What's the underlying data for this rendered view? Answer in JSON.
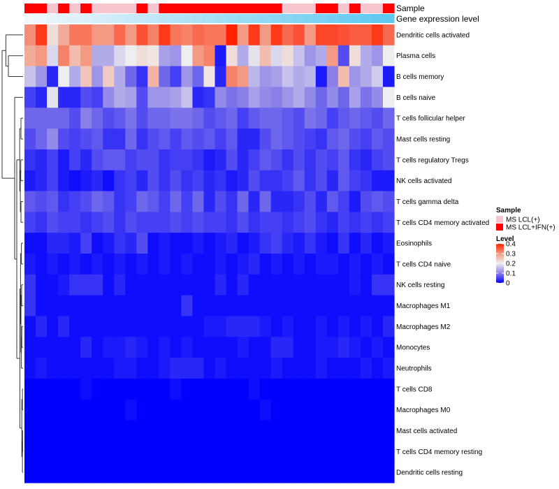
{
  "chart_data": {
    "type": "heatmap",
    "title": "",
    "annotation_labels": [
      "Sample",
      "Gene expression level"
    ],
    "rows": [
      "Dendritic cells activated",
      "Plasma cells",
      "B cells memory",
      "B cells naive",
      "T cells follicular helper",
      "Mast cells resting",
      "T cells regulatory  Tregs",
      "NK cells activated",
      "T cells gamma delta",
      "T cells CD4 memory activated",
      "Eosinophils",
      "T cells CD4 naive",
      "NK cells resting",
      "Macrophages M1",
      "Macrophages M2",
      "Monocytes",
      "Neutrophils",
      "T cells CD8",
      "Macrophages M0",
      "Mast cells activated",
      "T cells CD4 memory resting",
      "Dendritic cells resting"
    ],
    "sample_groups": [
      "IFN",
      "IFN",
      "LCL",
      "IFN",
      "LCL",
      "IFN",
      "LCL",
      "LCL",
      "LCL",
      "LCL",
      "IFN",
      "LCL",
      "IFN",
      "IFN",
      "IFN",
      "IFN",
      "IFN",
      "IFN",
      "IFN",
      "IFN",
      "IFN",
      "IFN",
      "IFN",
      "LCL",
      "LCL",
      "LCL",
      "IFN",
      "IFN",
      "LCL",
      "IFN",
      "LCL",
      "LCL",
      "IFN"
    ],
    "values": [
      [
        0.31,
        0.38,
        0.22,
        0.28,
        0.33,
        0.33,
        0.3,
        0.3,
        0.34,
        0.3,
        0.36,
        0.32,
        0.38,
        0.33,
        0.32,
        0.34,
        0.33,
        0.33,
        0.4,
        0.3,
        0.38,
        0.3,
        0.38,
        0.34,
        0.36,
        0.3,
        0.37,
        0.37,
        0.36,
        0.35,
        0.35,
        0.38,
        0.34
      ],
      [
        0.28,
        0.3,
        0.18,
        0.32,
        0.26,
        0.3,
        0.14,
        0.14,
        0.18,
        0.2,
        0.22,
        0.21,
        0.13,
        0.12,
        0.2,
        0.3,
        0.32,
        0.02,
        0.22,
        0.14,
        0.19,
        0.26,
        0.18,
        0.22,
        0.16,
        0.12,
        0.14,
        0.3,
        0.06,
        0.22,
        0.14,
        0.12,
        0.2
      ],
      [
        0.16,
        0.12,
        0.03,
        0.2,
        0.14,
        0.25,
        0.12,
        0.24,
        0.14,
        0.08,
        0.04,
        0.27,
        0.08,
        0.05,
        0.12,
        0.08,
        0.21,
        0.03,
        0.32,
        0.3,
        0.15,
        0.12,
        0.13,
        0.16,
        0.14,
        0.15,
        0.02,
        0.1,
        0.26,
        0.12,
        0.14,
        0.17,
        0.02
      ],
      [
        0.05,
        0.03,
        0.19,
        0.03,
        0.03,
        0.06,
        0.05,
        0.11,
        0.14,
        0.13,
        0.06,
        0.12,
        0.12,
        0.13,
        0.16,
        0.03,
        0.04,
        0.11,
        0.09,
        0.1,
        0.13,
        0.11,
        0.1,
        0.12,
        0.14,
        0.11,
        0.08,
        0.11,
        0.08,
        0.13,
        0.09,
        0.11,
        0.2
      ],
      [
        0.08,
        0.08,
        0.08,
        0.08,
        0.06,
        0.1,
        0.08,
        0.06,
        0.07,
        0.09,
        0.06,
        0.08,
        0.08,
        0.09,
        0.09,
        0.08,
        0.06,
        0.07,
        0.08,
        0.05,
        0.07,
        0.08,
        0.08,
        0.07,
        0.06,
        0.09,
        0.08,
        0.05,
        0.07,
        0.08,
        0.07,
        0.06,
        0.08
      ],
      [
        0.06,
        0.08,
        0.11,
        0.06,
        0.05,
        0.06,
        0.07,
        0.04,
        0.04,
        0.08,
        0.04,
        0.06,
        0.07,
        0.05,
        0.07,
        0.06,
        0.07,
        0.05,
        0.07,
        0.03,
        0.03,
        0.06,
        0.08,
        0.07,
        0.06,
        0.05,
        0.04,
        0.07,
        0.08,
        0.06,
        0.05,
        0.07,
        0.06
      ],
      [
        0.04,
        0.03,
        0.05,
        0.02,
        0.05,
        0.03,
        0.06,
        0.07,
        0.07,
        0.05,
        0.06,
        0.06,
        0.04,
        0.05,
        0.05,
        0.04,
        0.02,
        0.03,
        0.06,
        0.03,
        0.05,
        0.07,
        0.06,
        0.04,
        0.06,
        0.04,
        0.06,
        0.05,
        0.07,
        0.04,
        0.03,
        0.05,
        0.06
      ],
      [
        0.02,
        0.03,
        0.05,
        0.02,
        0.01,
        0.02,
        0.03,
        0.01,
        0.04,
        0.05,
        0.03,
        0.06,
        0.04,
        0.06,
        0.04,
        0.05,
        0.03,
        0.04,
        0.02,
        0.03,
        0.06,
        0.04,
        0.04,
        0.05,
        0.07,
        0.04,
        0.06,
        0.03,
        0.07,
        0.05,
        0.04,
        0.02,
        0.02
      ],
      [
        0.07,
        0.06,
        0.07,
        0.04,
        0.05,
        0.06,
        0.08,
        0.07,
        0.04,
        0.05,
        0.08,
        0.07,
        0.05,
        0.08,
        0.05,
        0.08,
        0.03,
        0.06,
        0.04,
        0.08,
        0.03,
        0.08,
        0.03,
        0.03,
        0.04,
        0.06,
        0.03,
        0.07,
        0.05,
        0.02,
        0.06,
        0.07,
        0.06
      ],
      [
        0.05,
        0.04,
        0.06,
        0.05,
        0.05,
        0.04,
        0.05,
        0.06,
        0.04,
        0.06,
        0.05,
        0.05,
        0.05,
        0.06,
        0.05,
        0.06,
        0.05,
        0.05,
        0.04,
        0.06,
        0.04,
        0.05,
        0.05,
        0.04,
        0.05,
        0.06,
        0.04,
        0.03,
        0.05,
        0.04,
        0.05,
        0.04,
        0.05
      ],
      [
        0.01,
        0.01,
        0.03,
        0.03,
        0.02,
        0.05,
        0.01,
        0.02,
        0.04,
        0.03,
        0.06,
        0.01,
        0.02,
        0.01,
        0.01,
        0.02,
        0.01,
        0.02,
        0.03,
        0.01,
        0.02,
        0.04,
        0.05,
        0.03,
        0.02,
        0.04,
        0.02,
        0.01,
        0.04,
        0.01,
        0.03,
        0.01,
        0.02
      ],
      [
        0.02,
        0.01,
        0.02,
        0.01,
        0.02,
        0.01,
        0.02,
        0.01,
        0.02,
        0.01,
        0.02,
        0.01,
        0.02,
        0.01,
        0.02,
        0.01,
        0.01,
        0.02,
        0.01,
        0.02,
        0.03,
        0.01,
        0.02,
        0.01,
        0.02,
        0.01,
        0.02,
        0.02,
        0.01,
        0.02,
        0.01,
        0.02,
        0.01
      ],
      [
        0.04,
        0.01,
        0.01,
        0.02,
        0.04,
        0.04,
        0.04,
        0.01,
        0.03,
        0.01,
        0.01,
        0.01,
        0.01,
        0.01,
        0.01,
        0.01,
        0.01,
        0.03,
        0.01,
        0.03,
        0.01,
        0.01,
        0.01,
        0.01,
        0.01,
        0.01,
        0.01,
        0.01,
        0.01,
        0.02,
        0.01,
        0.04,
        0.04
      ],
      [
        0.04,
        0.01,
        0.01,
        0.01,
        0.01,
        0.01,
        0.01,
        0.01,
        0.01,
        0.01,
        0.01,
        0.01,
        0.01,
        0.01,
        0.04,
        0.01,
        0.01,
        0.01,
        0.01,
        0.01,
        0.01,
        0.01,
        0.01,
        0.01,
        0.01,
        0.01,
        0.01,
        0.01,
        0.01,
        0.01,
        0.01,
        0.01,
        0.01
      ],
      [
        0.01,
        0.03,
        0.01,
        0.03,
        0.01,
        0.01,
        0.01,
        0.01,
        0.01,
        0.01,
        0.01,
        0.01,
        0.01,
        0.01,
        0.01,
        0.01,
        0.02,
        0.02,
        0.03,
        0.03,
        0.03,
        0.02,
        0.01,
        0.02,
        0.01,
        0.01,
        0.02,
        0.01,
        0.02,
        0.01,
        0.02,
        0.01,
        0.03
      ],
      [
        0.01,
        0.01,
        0.01,
        0.01,
        0.01,
        0.03,
        0.01,
        0.02,
        0.02,
        0.03,
        0.02,
        0.01,
        0.02,
        0.01,
        0.02,
        0.01,
        0.01,
        0.01,
        0.01,
        0.02,
        0.01,
        0.01,
        0.03,
        0.03,
        0.01,
        0.01,
        0.02,
        0.02,
        0.03,
        0.02,
        0.01,
        0.02,
        0.01
      ],
      [
        0.01,
        0.02,
        0.01,
        0.01,
        0.01,
        0.01,
        0.01,
        0.01,
        0.02,
        0.02,
        0.01,
        0.01,
        0.02,
        0.03,
        0.03,
        0.03,
        0.01,
        0.02,
        0.01,
        0.01,
        0.01,
        0.01,
        0.02,
        0.01,
        0.01,
        0.01,
        0.02,
        0.01,
        0.01,
        0.01,
        0.02,
        0.01,
        0.02
      ],
      [
        0.0,
        0.0,
        0.0,
        0.0,
        0.0,
        0.01,
        0.0,
        0.0,
        0.0,
        0.0,
        0.0,
        0.0,
        0.0,
        0.01,
        0.0,
        0.0,
        0.0,
        0.0,
        0.0,
        0.0,
        0.01,
        0.0,
        0.0,
        0.0,
        0.0,
        0.0,
        0.0,
        0.0,
        0.0,
        0.0,
        0.0,
        0.0,
        0.0
      ],
      [
        0.0,
        0.0,
        0.0,
        0.0,
        0.0,
        0.0,
        0.0,
        0.0,
        0.0,
        0.01,
        0.0,
        0.0,
        0.0,
        0.0,
        0.0,
        0.0,
        0.0,
        0.0,
        0.0,
        0.0,
        0.0,
        0.01,
        0.0,
        0.0,
        0.0,
        0.0,
        0.0,
        0.0,
        0.0,
        0.0,
        0.0,
        0.0,
        0.0
      ],
      [
        0.0,
        0.0,
        0.0,
        0.0,
        0.0,
        0.0,
        0.0,
        0.0,
        0.0,
        0.0,
        0.0,
        0.0,
        0.0,
        0.0,
        0.0,
        0.0,
        0.0,
        0.0,
        0.0,
        0.0,
        0.0,
        0.0,
        0.0,
        0.0,
        0.0,
        0.0,
        0.0,
        0.0,
        0.0,
        0.0,
        0.0,
        0.0,
        0.0
      ],
      [
        0.0,
        0.0,
        0.0,
        0.0,
        0.0,
        0.0,
        0.0,
        0.0,
        0.0,
        0.0,
        0.0,
        0.0,
        0.0,
        0.0,
        0.0,
        0.0,
        0.0,
        0.0,
        0.0,
        0.0,
        0.0,
        0.0,
        0.0,
        0.0,
        0.0,
        0.0,
        0.0,
        0.0,
        0.0,
        0.0,
        0.0,
        0.0,
        0.0
      ],
      [
        0.0,
        0.0,
        0.0,
        0.0,
        0.0,
        0.0,
        0.0,
        0.0,
        0.0,
        0.0,
        0.0,
        0.0,
        0.0,
        0.0,
        0.0,
        0.0,
        0.0,
        0.0,
        0.0,
        0.0,
        0.0,
        0.0,
        0.0,
        0.0,
        0.0,
        0.0,
        0.0,
        0.0,
        0.0,
        0.0,
        0.0,
        0.0,
        0.0
      ]
    ],
    "color_scale": {
      "stops": [
        0,
        0.1,
        0.2,
        0.3,
        0.4
      ],
      "colors": [
        "#0000ff",
        "#8a7fe6",
        "#eeeeee",
        "#f49a84",
        "#ff2200"
      ],
      "min": 0,
      "max": 0.4
    },
    "legend": {
      "sample": {
        "title": "Sample",
        "items": [
          {
            "key": "LCL",
            "label": "MS LCL(+)",
            "color": "#f7c5ce"
          },
          {
            "key": "IFN",
            "label": "MS LCL+IFN(+)",
            "color": "#ff0000"
          }
        ]
      },
      "level": {
        "title": "Level",
        "ticks": [
          "0.4",
          "0.3",
          "0.2",
          "0.1",
          "0"
        ]
      }
    },
    "expression_gradient": {
      "start": "#f2f7fb",
      "end": "#5ec8f0"
    }
  }
}
